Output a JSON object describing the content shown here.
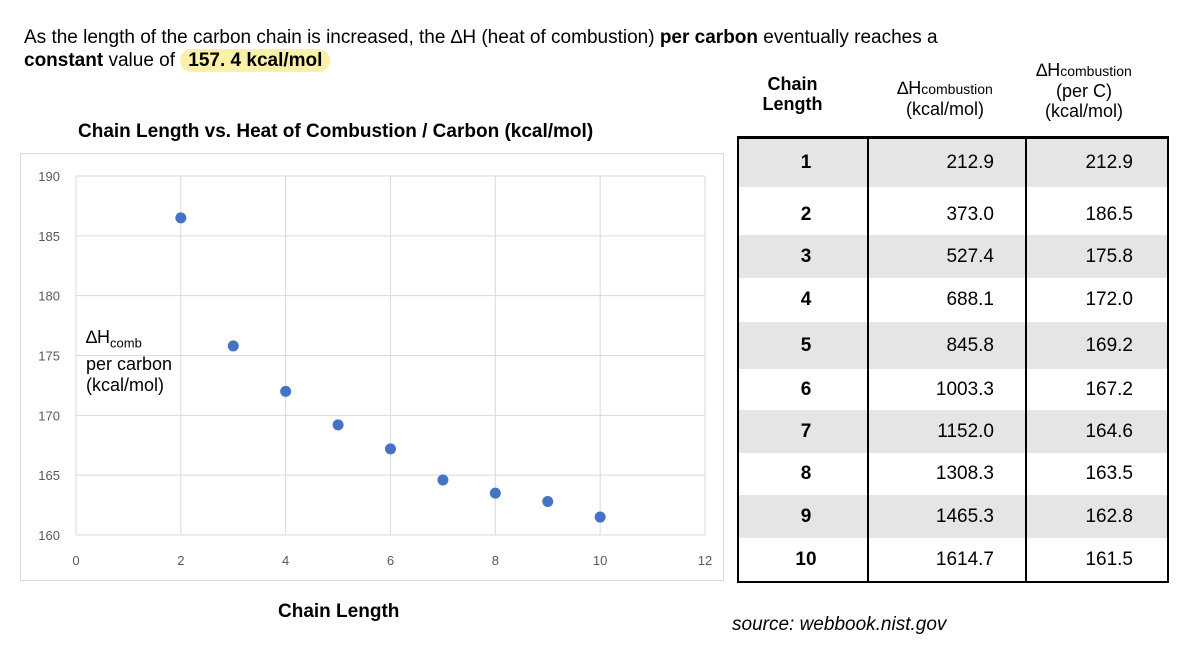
{
  "intro": {
    "part1": "As the length of the carbon chain is increased, the ∆H (heat of combustion) ",
    "bold1": "per carbon",
    "part2": " eventually reaches a",
    "bold2": "constant",
    "part3": " value of ",
    "highlight": "157. 4 kcal/mol"
  },
  "colors": {
    "marker": "#4472c4",
    "grid": "#d9d9d9",
    "shade": "#e5e5e5",
    "highlight": "#fbf0a8"
  },
  "chart_data": {
    "type": "scatter",
    "title": "Chain Length vs. Heat of Combustion / Carbon (kcal/mol)",
    "xlabel": "Chain Length",
    "ylabel": {
      "main": "∆H",
      "sub": "comb",
      "line2": "per carbon",
      "line3": "(kcal/mol)"
    },
    "xlim": [
      0,
      12
    ],
    "ylim": [
      160,
      190
    ],
    "xticks": [
      0,
      2,
      4,
      6,
      8,
      10,
      12
    ],
    "yticks": [
      160,
      165,
      170,
      175,
      180,
      185,
      190
    ],
    "grid": true,
    "series": [
      {
        "x": [
          2,
          3,
          4,
          5,
          6,
          7,
          8,
          9,
          10
        ],
        "y": [
          186.5,
          175.8,
          172.0,
          169.2,
          167.2,
          164.6,
          163.5,
          162.8,
          161.5
        ]
      }
    ]
  },
  "table": {
    "headers": {
      "col1": [
        "Chain",
        "Length"
      ],
      "col2": {
        "main": "∆H",
        "sub": "combustion",
        "unit": "(kcal/mol)"
      },
      "col3": {
        "main": "∆H",
        "sub": "combustion",
        "line2": "(per C)",
        "unit": "(kcal/mol)"
      }
    },
    "rows": [
      {
        "n": "1",
        "dh": "212.9",
        "perc": "212.9"
      },
      {
        "n": "2",
        "dh": "373.0",
        "perc": "186.5"
      },
      {
        "n": "3",
        "dh": "527.4",
        "perc": "175.8"
      },
      {
        "n": "4",
        "dh": "688.1",
        "perc": "172.0"
      },
      {
        "n": "5",
        "dh": "845.8",
        "perc": "169.2"
      },
      {
        "n": "6",
        "dh": "1003.3",
        "perc": "167.2"
      },
      {
        "n": "7",
        "dh": "1152.0",
        "perc": "164.6"
      },
      {
        "n": "8",
        "dh": "1308.3",
        "perc": "163.5"
      },
      {
        "n": "9",
        "dh": "1465.3",
        "perc": "162.8"
      },
      {
        "n": "10",
        "dh": "1614.7",
        "perc": "161.5"
      }
    ]
  },
  "source": "source: webbook.nist.gov"
}
